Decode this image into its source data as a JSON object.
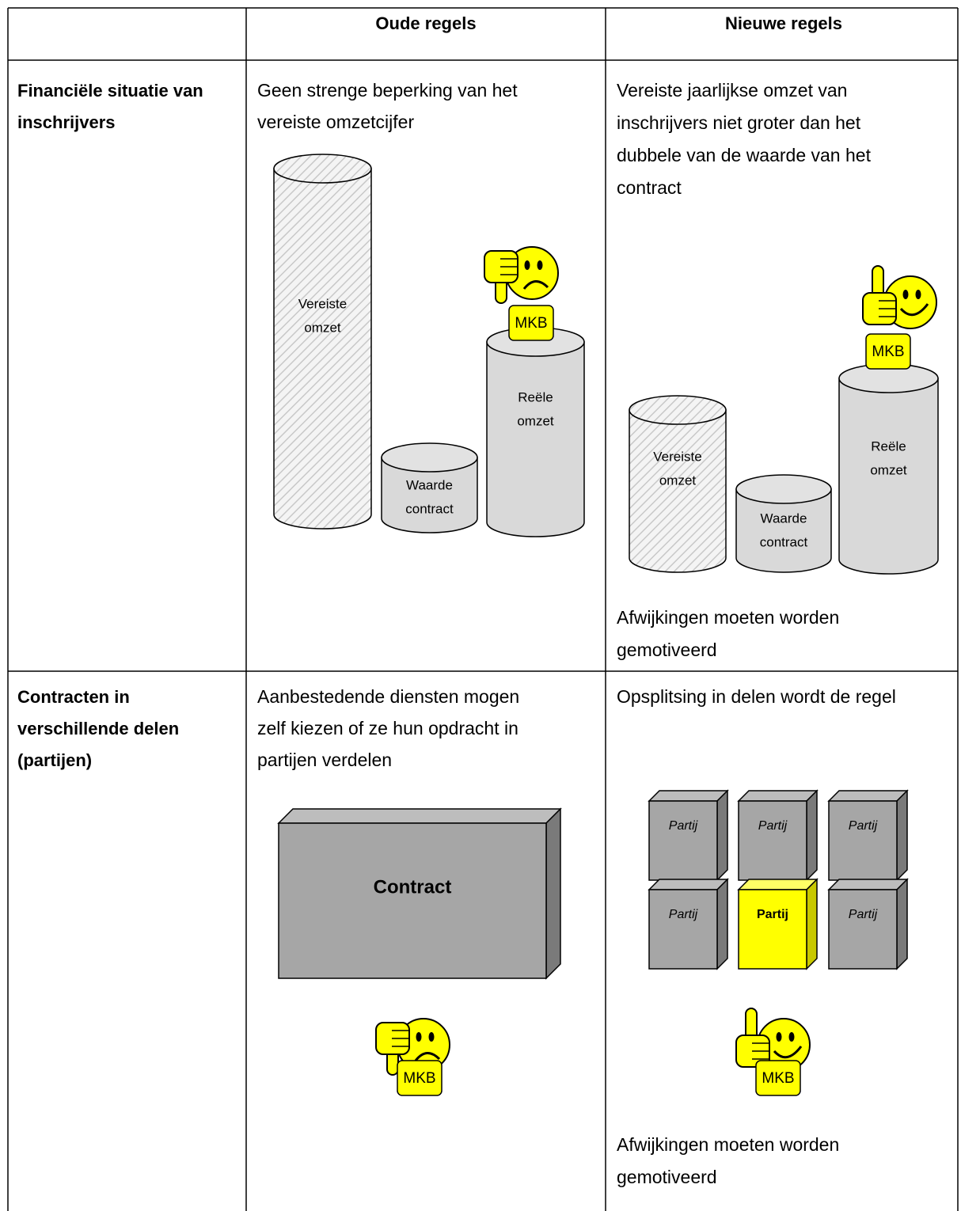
{
  "table": {
    "header": [
      "Oude regels",
      "Nieuwe regels"
    ],
    "rows": [
      {
        "label": [
          "Financiële situatie van",
          "inschrijvers"
        ],
        "old": {
          "text": [
            "Geen strenge beperking van het",
            "vereiste omzetcijfer"
          ],
          "cylinders": [
            [
              "Vereiste",
              "omzet"
            ],
            [
              "Waarde",
              "contract"
            ],
            [
              "Reële",
              "omzet"
            ]
          ],
          "badge": "MKB"
        },
        "new": {
          "text": [
            "Vereiste jaarlijkse omzet van",
            "inschrijvers niet groter dan het",
            "dubbele van de waarde van het",
            "contract"
          ],
          "cylinders": [
            [
              "Vereiste",
              "omzet"
            ],
            [
              "Waarde",
              "contract"
            ],
            [
              "Reële",
              "omzet"
            ]
          ],
          "badge": "MKB",
          "note": [
            "Afwijkingen moeten worden",
            "gemotiveerd"
          ]
        }
      },
      {
        "label": [
          "Contracten in",
          "verschillende delen",
          "(partijen)"
        ],
        "old": {
          "text": [
            "Aanbestedende diensten mogen",
            "zelf kiezen of ze hun opdracht in",
            "partijen verdelen"
          ],
          "box": "Contract",
          "badge": "MKB"
        },
        "new": {
          "text": [
            "Opsplitsing in delen wordt de regel"
          ],
          "parts": [
            "Partij",
            "Partij",
            "Partij",
            "Partij",
            "Partij",
            "Partij"
          ],
          "badge": "MKB",
          "note": [
            "Afwijkingen moeten worden",
            "gemotiveerd"
          ]
        }
      }
    ]
  }
}
